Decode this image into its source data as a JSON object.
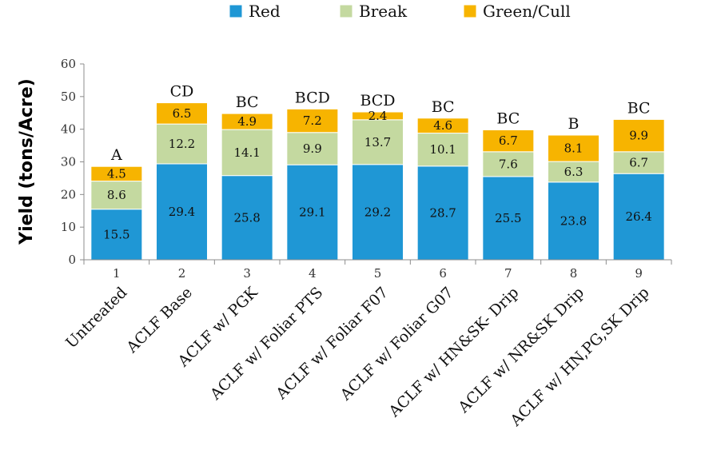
{
  "chart_data": {
    "type": "bar",
    "stacked": true,
    "title": "",
    "xlabel": "",
    "ylabel": "Yield (tons/Acre)",
    "ylim": [
      0,
      60
    ],
    "yticks": [
      "0",
      "10",
      "20",
      "30",
      "40",
      "50",
      "60"
    ],
    "grid": false,
    "legend_position": "top",
    "numbers": [
      "1",
      "2",
      "3",
      "4",
      "5",
      "6",
      "7",
      "8",
      "9"
    ],
    "categories": [
      "Untreated",
      "ACLF Base",
      "ACLF w/ PGK",
      "ACLF w/ Foliar PTS",
      "ACLF w/ Foliar F07",
      "ACLF w/ Foliar G07",
      "ACLF w/ HN&SK- Drip",
      "ACLF w/ NR&SK Drip",
      "ACLF w/ HN,PG,SK Drip"
    ],
    "letters": [
      "A",
      "CD",
      "BC",
      "BCD",
      "BCD",
      "BC",
      "BC",
      "B",
      "BC"
    ],
    "series": [
      {
        "name": "Red",
        "color": "#1f97d5",
        "values": [
          15.5,
          29.4,
          25.8,
          29.1,
          29.2,
          28.7,
          25.5,
          23.8,
          26.4
        ],
        "labels": [
          "15.5",
          "29.4",
          "25.8",
          "29.1",
          "29.2",
          "28.7",
          "25.5",
          "23.8",
          "26.4"
        ]
      },
      {
        "name": "Break",
        "color": "#c4d9a0",
        "values": [
          8.6,
          12.2,
          14.1,
          9.9,
          13.7,
          10.1,
          7.6,
          6.3,
          6.7
        ],
        "labels": [
          "8.6",
          "12.2",
          "14.1",
          "9.9",
          "13.7",
          "10.1",
          "7.6",
          "6.3",
          "6.7"
        ]
      },
      {
        "name": "Green/Cull",
        "color": "#f7b400",
        "values": [
          4.5,
          6.5,
          4.9,
          7.2,
          2.4,
          4.6,
          6.7,
          8.1,
          9.9
        ],
        "labels": [
          "4.5",
          "6.5",
          "4.9",
          "7.2",
          "2.4",
          "4.6",
          "6.7",
          "8.1",
          "9.9"
        ]
      }
    ]
  }
}
